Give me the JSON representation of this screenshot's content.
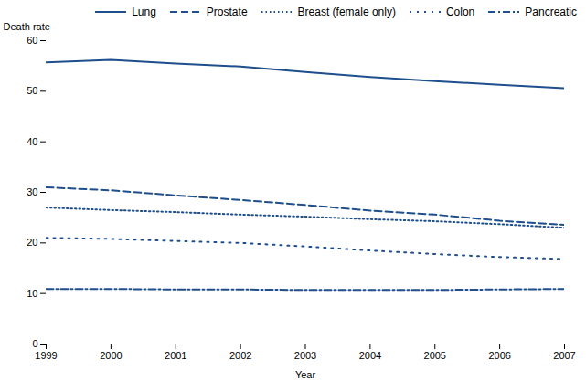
{
  "chart_data": {
    "type": "line",
    "xlabel": "Year",
    "ylabel": "Death rate",
    "x": [
      1999,
      2000,
      2001,
      2002,
      2003,
      2004,
      2005,
      2006,
      2007
    ],
    "xlim": [
      1999,
      2007
    ],
    "xticks": [
      1999,
      2000,
      2001,
      2002,
      2003,
      2004,
      2005,
      2006,
      2007
    ],
    "ylim": [
      0,
      60
    ],
    "yticks": [
      0,
      10,
      20,
      30,
      40,
      50,
      60
    ],
    "grid": false,
    "legend": "upper right",
    "series": [
      {
        "name": "Lung",
        "color": "#1f4e8c",
        "line_style": "solid",
        "values": [
          55.7,
          56.2,
          55.5,
          54.9,
          53.8,
          52.8,
          52.0,
          51.3,
          50.6
        ]
      },
      {
        "name": "Prostate",
        "color": "#1f4e8c",
        "line_style": "dashed",
        "values": [
          31.0,
          30.4,
          29.4,
          28.5,
          27.5,
          26.4,
          25.6,
          24.4,
          23.6
        ]
      },
      {
        "name": "Breast (female only)",
        "color": "#1f4e8c",
        "line_style": "dotted",
        "values": [
          27.0,
          26.5,
          26.1,
          25.6,
          25.2,
          24.7,
          24.3,
          23.7,
          23.0
        ]
      },
      {
        "name": "Colon",
        "color": "#1f4e8c",
        "line_style": "loosely dotted",
        "values": [
          21.0,
          20.8,
          20.4,
          20.0,
          19.3,
          18.5,
          17.8,
          17.2,
          16.8
        ]
      },
      {
        "name": "Pancreatic",
        "color": "#1f4e8c",
        "line_style": "dashdot",
        "values": [
          10.9,
          10.9,
          10.8,
          10.8,
          10.7,
          10.7,
          10.7,
          10.8,
          10.9
        ]
      }
    ]
  }
}
